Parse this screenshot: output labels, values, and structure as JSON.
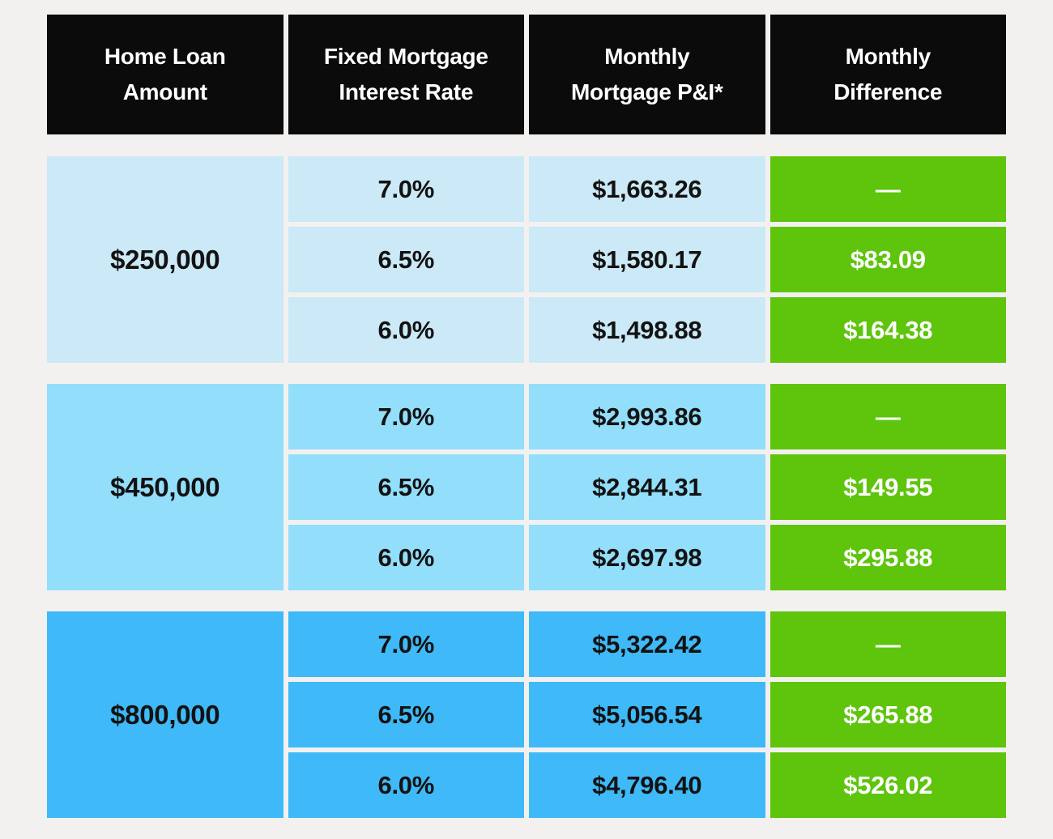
{
  "colors": {
    "page_background": "#f2f1f0",
    "header_background": "#0b0b0b",
    "header_text": "#ffffff",
    "difference_green": "#5ec40c",
    "data_text": "#121212",
    "group_tints": [
      "#cbe9f6",
      "#92defb",
      "#3fb9f7"
    ]
  },
  "table": {
    "headers": [
      {
        "line1": "Home Loan",
        "line2": "Amount"
      },
      {
        "line1": "Fixed Mortgage",
        "line2": "Interest Rate"
      },
      {
        "line1": "Monthly",
        "line2": "Mortgage P&I*"
      },
      {
        "line1": "Monthly",
        "line2": "Difference"
      }
    ],
    "groups": [
      {
        "loan_amount": "$250,000",
        "rows": [
          {
            "rate": "7.0%",
            "payment": "$1,663.26",
            "difference": "—"
          },
          {
            "rate": "6.5%",
            "payment": "$1,580.17",
            "difference": "$83.09"
          },
          {
            "rate": "6.0%",
            "payment": "$1,498.88",
            "difference": "$164.38"
          }
        ]
      },
      {
        "loan_amount": "$450,000",
        "rows": [
          {
            "rate": "7.0%",
            "payment": "$2,993.86",
            "difference": "—"
          },
          {
            "rate": "6.5%",
            "payment": "$2,844.31",
            "difference": "$149.55"
          },
          {
            "rate": "6.0%",
            "payment": "$2,697.98",
            "difference": "$295.88"
          }
        ]
      },
      {
        "loan_amount": "$800,000",
        "rows": [
          {
            "rate": "7.0%",
            "payment": "$5,322.42",
            "difference": "—"
          },
          {
            "rate": "6.5%",
            "payment": "$5,056.54",
            "difference": "$265.88"
          },
          {
            "rate": "6.0%",
            "payment": "$4,796.40",
            "difference": "$526.02"
          }
        ]
      }
    ]
  },
  "chart_data": {
    "type": "table",
    "title": "",
    "columns": [
      "Home Loan Amount",
      "Fixed Mortgage Interest Rate",
      "Monthly Mortgage P&I*",
      "Monthly Difference"
    ],
    "rows": [
      [
        "$250,000",
        "7.0%",
        "$1,663.26",
        "—"
      ],
      [
        "$250,000",
        "6.5%",
        "$1,580.17",
        "$83.09"
      ],
      [
        "$250,000",
        "6.0%",
        "$1,498.88",
        "$164.38"
      ],
      [
        "$450,000",
        "7.0%",
        "$2,993.86",
        "—"
      ],
      [
        "$450,000",
        "6.5%",
        "$2,844.31",
        "$149.55"
      ],
      [
        "$450,000",
        "6.0%",
        "$2,697.98",
        "$295.88"
      ],
      [
        "$800,000",
        "7.0%",
        "$5,322.42",
        "—"
      ],
      [
        "$800,000",
        "6.5%",
        "$5,056.54",
        "$265.88"
      ],
      [
        "$800,000",
        "6.0%",
        "$4,796.40",
        "$526.02"
      ]
    ]
  }
}
